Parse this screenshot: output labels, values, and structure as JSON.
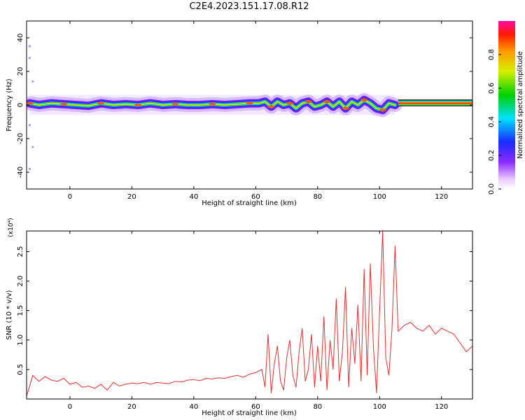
{
  "figure": {
    "title": "C2E4.2023.151.17.08.R12"
  },
  "chart_data": [
    {
      "type": "heatmap",
      "title": "C2E4.2023.151.17.08.R12",
      "xlabel": "Height of straight line (km)",
      "ylabel": "Frequency (Hz)",
      "xlim": [
        -14,
        130
      ],
      "ylim": [
        -50,
        50
      ],
      "xticks": [
        "0",
        "20",
        "40",
        "60",
        "80",
        "100",
        "120"
      ],
      "yticks": [
        "-40",
        "-20",
        "0",
        "20",
        "40"
      ],
      "colorbar": {
        "label": "Normalized spectral amplitude",
        "range": [
          0,
          1
        ],
        "ticks": [
          "0.0",
          "0.2",
          "0.4",
          "0.6",
          "0.8"
        ]
      },
      "ridge": {
        "x": [
          -13,
          -10,
          -6,
          -2,
          2,
          6,
          10,
          14,
          18,
          22,
          26,
          30,
          34,
          38,
          42,
          46,
          50,
          54,
          58,
          61,
          63,
          65,
          67,
          69,
          71,
          73,
          75,
          77,
          79,
          81,
          83,
          85,
          87,
          89,
          91,
          93,
          95,
          97,
          99,
          101,
          103,
          105
        ],
        "y": [
          1,
          0,
          1,
          0.5,
          0,
          -0.5,
          1,
          0,
          0.5,
          0,
          1,
          0,
          0.5,
          0,
          0,
          0.5,
          0,
          0.5,
          1,
          1,
          2,
          -1,
          2,
          0,
          1,
          -2,
          1,
          2,
          -1,
          0,
          2,
          -1,
          2,
          -2,
          2,
          0,
          3,
          1,
          -2,
          -3,
          1,
          0
        ],
        "band_x": [
          106,
          130
        ],
        "band_y": [
          -0.5,
          3
        ]
      }
    },
    {
      "type": "line",
      "xlabel": "Height of straight line (km)",
      "ylabel": "SNR (10 * v/v)",
      "y_multiplier": "(x10⁴)",
      "xlim": [
        -14,
        130
      ],
      "ylim": [
        0,
        2.85
      ],
      "xticks": [
        "0",
        "20",
        "40",
        "60",
        "80",
        "100",
        "120"
      ],
      "yticks": [
        "0.5",
        "1.0",
        "1.5",
        "2.0",
        "2.5"
      ],
      "color": "#e03030",
      "series": [
        {
          "x": [
            -14,
            -12,
            -10,
            -8,
            -6,
            -4,
            -2,
            0,
            2,
            4,
            6,
            8,
            10,
            12,
            14,
            16,
            18,
            20,
            22,
            24,
            26,
            28,
            30,
            32,
            34,
            36,
            38,
            40,
            42,
            44,
            46,
            48,
            50,
            52,
            54,
            56,
            58,
            60,
            62,
            63,
            64,
            65,
            66,
            67,
            68,
            69,
            70,
            71,
            72,
            73,
            74,
            75,
            76,
            77,
            78,
            79,
            80,
            81,
            82,
            83,
            84,
            85,
            86,
            87,
            88,
            89,
            90,
            91,
            92,
            93,
            94,
            95,
            96,
            97,
            98,
            99,
            100,
            101,
            102,
            103,
            104,
            105,
            106,
            108,
            110,
            112,
            114,
            116,
            118,
            120,
            122,
            124,
            126,
            128,
            130
          ],
          "y": [
            0.05,
            0.4,
            0.3,
            0.38,
            0.32,
            0.3,
            0.35,
            0.25,
            0.28,
            0.2,
            0.22,
            0.18,
            0.25,
            0.15,
            0.28,
            0.22,
            0.25,
            0.27,
            0.26,
            0.28,
            0.25,
            0.28,
            0.27,
            0.26,
            0.3,
            0.29,
            0.32,
            0.33,
            0.31,
            0.35,
            0.34,
            0.36,
            0.35,
            0.38,
            0.4,
            0.37,
            0.42,
            0.45,
            0.5,
            0.2,
            1.1,
            0.1,
            0.6,
            0.9,
            0.3,
            0.15,
            0.7,
            1.0,
            0.4,
            0.2,
            0.8,
            1.2,
            0.3,
            0.5,
            1.1,
            0.2,
            0.9,
            0.3,
            1.4,
            0.15,
            1.0,
            0.5,
            1.7,
            0.3,
            0.8,
            1.9,
            0.2,
            1.2,
            0.6,
            1.6,
            0.3,
            2.2,
            0.4,
            2.3,
            0.9,
            0.1,
            1.5,
            2.85,
            0.7,
            0.4,
            1.2,
            2.6,
            1.15,
            1.25,
            1.3,
            1.2,
            1.15,
            1.25,
            1.1,
            1.2,
            1.15,
            1.1,
            0.95,
            0.8,
            0.9
          ]
        }
      ]
    }
  ]
}
